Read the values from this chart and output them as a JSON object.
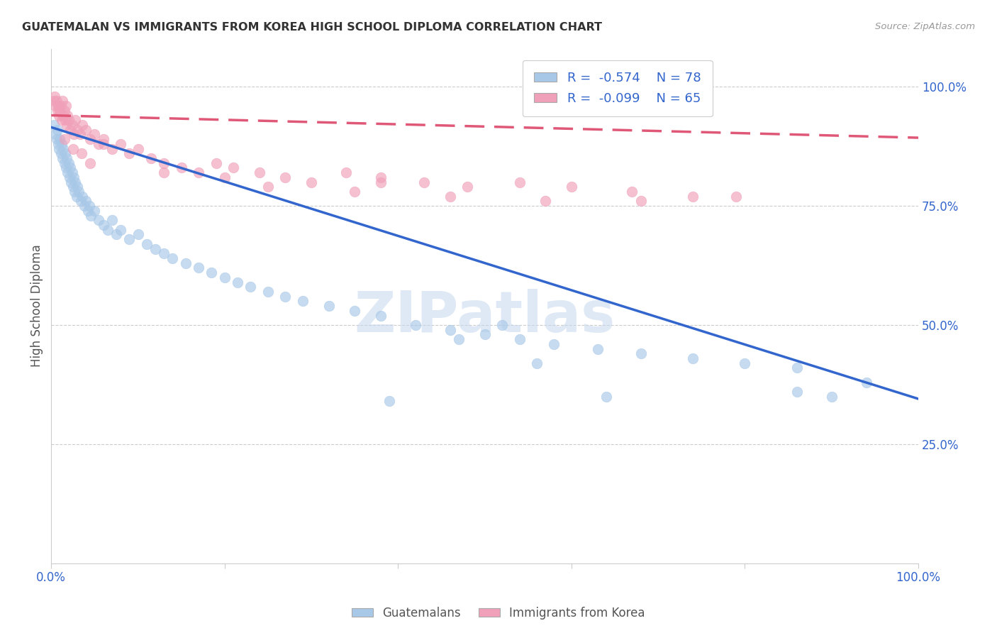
{
  "title": "GUATEMALAN VS IMMIGRANTS FROM KOREA HIGH SCHOOL DIPLOMA CORRELATION CHART",
  "source": "Source: ZipAtlas.com",
  "ylabel": "High School Diploma",
  "legend_blue_label": "Guatemalans",
  "legend_pink_label": "Immigrants from Korea",
  "legend_r_blue": "R = ",
  "legend_r_blue_val": "-0.574",
  "legend_n_blue": "N = 78",
  "legend_r_pink": "R = ",
  "legend_r_pink_val": "-0.099",
  "legend_n_pink": "N = 65",
  "blue_color": "#a8c8e8",
  "pink_color": "#f0a0b8",
  "blue_line_color": "#3366cc",
  "pink_line_color": "#e05878",
  "background_color": "#ffffff",
  "watermark": "ZIPatlas",
  "blue_x": [
    0.003,
    0.005,
    0.006,
    0.007,
    0.008,
    0.009,
    0.01,
    0.011,
    0.012,
    0.013,
    0.014,
    0.015,
    0.016,
    0.017,
    0.018,
    0.019,
    0.02,
    0.021,
    0.022,
    0.023,
    0.024,
    0.025,
    0.026,
    0.027,
    0.028,
    0.029,
    0.03,
    0.032,
    0.034,
    0.036,
    0.038,
    0.04,
    0.042,
    0.044,
    0.046,
    0.05,
    0.055,
    0.06,
    0.065,
    0.07,
    0.075,
    0.08,
    0.09,
    0.1,
    0.11,
    0.12,
    0.13,
    0.14,
    0.155,
    0.17,
    0.185,
    0.2,
    0.215,
    0.23,
    0.25,
    0.27,
    0.29,
    0.32,
    0.35,
    0.38,
    0.42,
    0.46,
    0.5,
    0.54,
    0.58,
    0.63,
    0.68,
    0.74,
    0.8,
    0.86,
    0.52,
    0.56,
    0.47,
    0.86,
    0.9,
    0.94,
    0.64,
    0.39
  ],
  "blue_y": [
    0.92,
    0.9,
    0.89,
    0.91,
    0.88,
    0.87,
    0.89,
    0.86,
    0.88,
    0.85,
    0.87,
    0.84,
    0.86,
    0.83,
    0.85,
    0.82,
    0.84,
    0.81,
    0.83,
    0.8,
    0.82,
    0.79,
    0.81,
    0.78,
    0.8,
    0.77,
    0.79,
    0.78,
    0.76,
    0.77,
    0.75,
    0.76,
    0.74,
    0.75,
    0.73,
    0.74,
    0.72,
    0.71,
    0.7,
    0.72,
    0.69,
    0.7,
    0.68,
    0.69,
    0.67,
    0.66,
    0.65,
    0.64,
    0.63,
    0.62,
    0.61,
    0.6,
    0.59,
    0.58,
    0.57,
    0.56,
    0.55,
    0.54,
    0.53,
    0.52,
    0.5,
    0.49,
    0.48,
    0.47,
    0.46,
    0.45,
    0.44,
    0.43,
    0.42,
    0.41,
    0.5,
    0.42,
    0.47,
    0.36,
    0.35,
    0.38,
    0.35,
    0.34
  ],
  "pink_x": [
    0.003,
    0.004,
    0.005,
    0.006,
    0.007,
    0.008,
    0.009,
    0.01,
    0.011,
    0.012,
    0.013,
    0.014,
    0.015,
    0.016,
    0.017,
    0.018,
    0.019,
    0.02,
    0.022,
    0.024,
    0.026,
    0.028,
    0.03,
    0.033,
    0.036,
    0.04,
    0.045,
    0.05,
    0.055,
    0.06,
    0.07,
    0.08,
    0.09,
    0.1,
    0.115,
    0.13,
    0.15,
    0.17,
    0.19,
    0.21,
    0.24,
    0.27,
    0.3,
    0.34,
    0.38,
    0.43,
    0.48,
    0.54,
    0.6,
    0.67,
    0.74,
    0.13,
    0.25,
    0.35,
    0.46,
    0.57,
    0.68,
    0.79,
    0.38,
    0.2,
    0.06,
    0.045,
    0.035,
    0.025,
    0.015
  ],
  "pink_y": [
    0.97,
    0.98,
    0.96,
    0.97,
    0.95,
    0.96,
    0.94,
    0.95,
    0.96,
    0.93,
    0.97,
    0.94,
    0.95,
    0.93,
    0.96,
    0.92,
    0.94,
    0.93,
    0.91,
    0.92,
    0.9,
    0.93,
    0.91,
    0.9,
    0.92,
    0.91,
    0.89,
    0.9,
    0.88,
    0.89,
    0.87,
    0.88,
    0.86,
    0.87,
    0.85,
    0.84,
    0.83,
    0.82,
    0.84,
    0.83,
    0.82,
    0.81,
    0.8,
    0.82,
    0.81,
    0.8,
    0.79,
    0.8,
    0.79,
    0.78,
    0.77,
    0.82,
    0.79,
    0.78,
    0.77,
    0.76,
    0.76,
    0.77,
    0.8,
    0.81,
    0.88,
    0.84,
    0.86,
    0.87,
    0.89
  ],
  "xlim": [
    0.0,
    1.0
  ],
  "ylim": [
    0.0,
    1.08
  ],
  "blue_trend_x": [
    0.0,
    1.0
  ],
  "blue_trend_y": [
    0.915,
    0.345
  ],
  "pink_trend_x": [
    0.0,
    1.0
  ],
  "pink_trend_y": [
    0.94,
    0.893
  ],
  "right_yticks": [
    1.0,
    0.75,
    0.5,
    0.25
  ],
  "right_yticklabels": [
    "100.0%",
    "75.0%",
    "50.0%",
    "25.0%"
  ]
}
